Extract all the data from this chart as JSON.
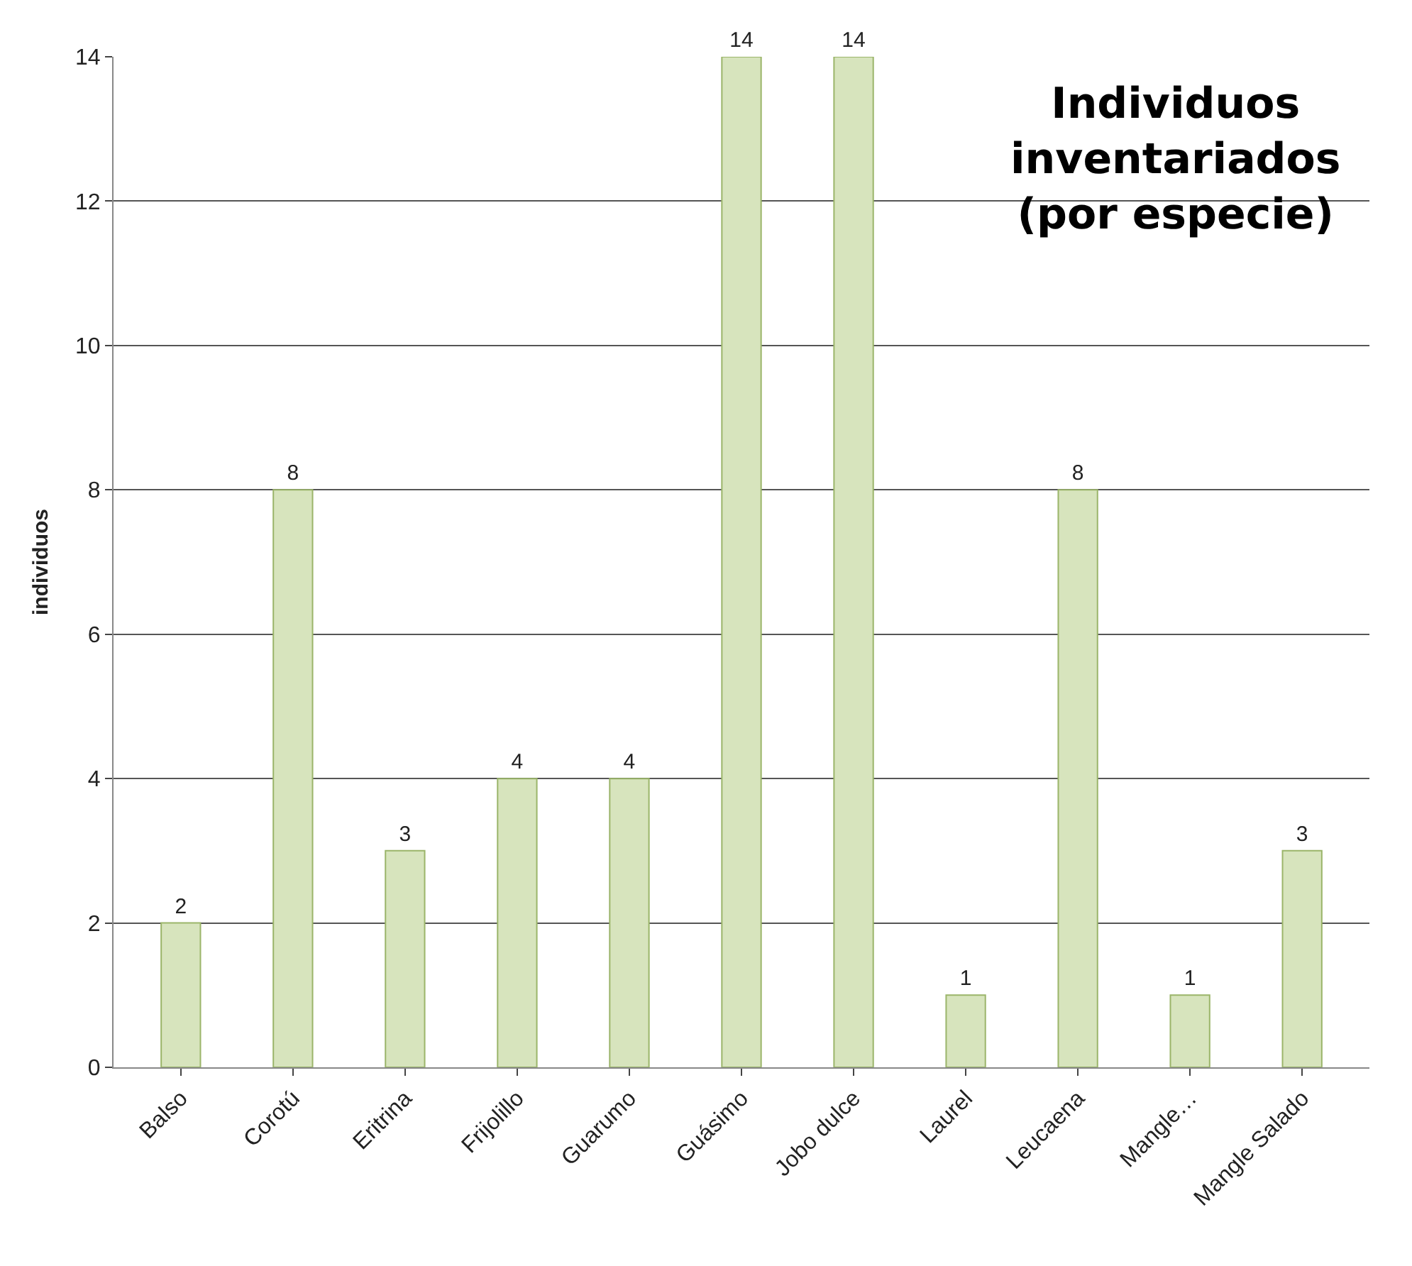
{
  "chart_data": {
    "type": "bar",
    "title": "Individuos\ninventariados\n(por especie)",
    "ylabel": "individuos",
    "categories": [
      "Balso",
      "Corotú",
      "Eritrina",
      "Frijolillo",
      "Guarumo",
      "Guásimo",
      "Jobo dulce",
      "Laurel",
      "Leucaena",
      "Mangle…",
      "Mangle Salado"
    ],
    "values": [
      2,
      8,
      3,
      4,
      4,
      14,
      14,
      1,
      8,
      1,
      3
    ],
    "color": "#d7e4bd",
    "ylim": [
      0,
      14
    ],
    "yticks": [
      0,
      2,
      4,
      6,
      8,
      10,
      12,
      14
    ],
    "grid": "y",
    "data_labels": true
  }
}
